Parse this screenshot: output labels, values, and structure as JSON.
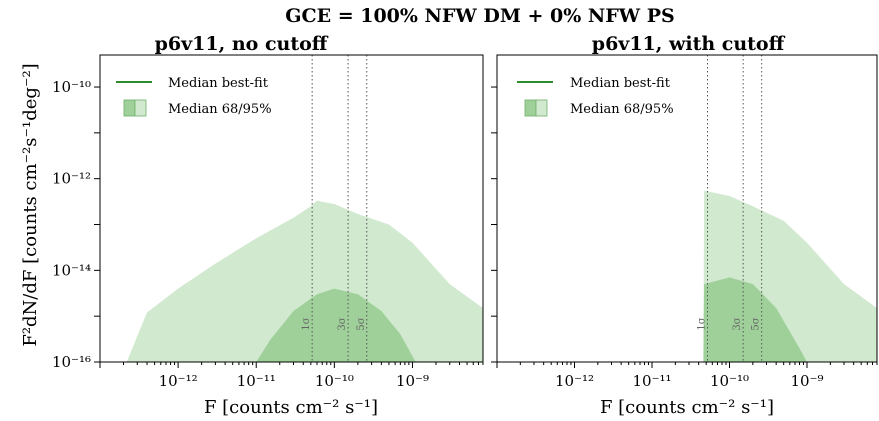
{
  "figure": {
    "suptitle": "GCE = 100% NFW DM + 0% NFW PS",
    "ylabel": "F²dN/dF [counts cm⁻²s⁻¹deg⁻²]"
  },
  "colors": {
    "band68": "#9fd09a",
    "band95": "#d1e9cf",
    "median_line": "#2e8b2e",
    "sigma_line": "#555555"
  },
  "legend": {
    "median_label": "Median best-fit",
    "band_label": "Median 68/95%"
  },
  "chart_data": [
    {
      "type": "area",
      "title": "p6v11, no cutoff",
      "xlabel": "F [counts cm⁻² s⁻¹]",
      "ylabel": "F²dN/dF [counts cm⁻²s⁻¹deg⁻²]",
      "xscale": "log",
      "yscale": "log",
      "xlim": [
        1e-13,
        8e-09
      ],
      "ylim": [
        1e-16,
        5e-10
      ],
      "xticks": [
        {
          "v": 1e-12,
          "label": "10⁻¹²"
        },
        {
          "v": 1e-11,
          "label": "10⁻¹¹"
        },
        {
          "v": 1e-10,
          "label": "10⁻¹⁰"
        },
        {
          "v": 1e-09,
          "label": "10⁻⁹"
        }
      ],
      "yticks": [
        {
          "v": 1e-16,
          "label": "10⁻¹⁶"
        },
        {
          "v": 1e-14,
          "label": "10⁻¹⁴"
        },
        {
          "v": 1e-12,
          "label": "10⁻¹²"
        },
        {
          "v": 1e-10,
          "label": "10⁻¹⁰"
        }
      ],
      "grid": false,
      "legend_position": "top-left",
      "sigma_lines": [
        {
          "label": "1σ",
          "x": 5.2e-11
        },
        {
          "label": "3σ",
          "x": 1.5e-10
        },
        {
          "label": "5σ",
          "x": 2.6e-10
        }
      ],
      "band_95": [
        {
          "x": 2.2e-13,
          "low": 1e-16,
          "high": 1e-16
        },
        {
          "x": 4e-13,
          "low": 1e-16,
          "high": 1.2e-15
        },
        {
          "x": 1e-12,
          "low": 1e-16,
          "high": 4e-15
        },
        {
          "x": 3e-12,
          "low": 1e-16,
          "high": 1.4e-14
        },
        {
          "x": 1e-11,
          "low": 1e-16,
          "high": 5e-14
        },
        {
          "x": 3e-11,
          "low": 1e-16,
          "high": 1.4e-13
        },
        {
          "x": 5e-11,
          "low": 1e-16,
          "high": 2.5e-13
        },
        {
          "x": 6e-11,
          "low": 1e-16,
          "high": 3.3e-13
        },
        {
          "x": 1e-10,
          "low": 1e-16,
          "high": 2.8e-13
        },
        {
          "x": 2e-10,
          "low": 1e-16,
          "high": 1.7e-13
        },
        {
          "x": 5e-10,
          "low": 1e-16,
          "high": 1e-13
        },
        {
          "x": 1e-09,
          "low": 1e-16,
          "high": 4e-14
        },
        {
          "x": 3e-09,
          "low": 1e-16,
          "high": 5e-15
        },
        {
          "x": 8e-09,
          "low": 1e-16,
          "high": 1.5e-15
        }
      ],
      "band_68": [
        {
          "x": 1e-11,
          "low": 1e-16,
          "high": 1e-16
        },
        {
          "x": 1.5e-11,
          "low": 1e-16,
          "high": 3e-16
        },
        {
          "x": 3e-11,
          "low": 1e-16,
          "high": 1.3e-15
        },
        {
          "x": 6e-11,
          "low": 1e-16,
          "high": 3e-15
        },
        {
          "x": 1e-10,
          "low": 1e-16,
          "high": 4e-15
        },
        {
          "x": 2e-10,
          "low": 1e-16,
          "high": 3e-15
        },
        {
          "x": 4e-10,
          "low": 1e-16,
          "high": 1.3e-15
        },
        {
          "x": 7e-10,
          "low": 1e-16,
          "high": 4e-16
        },
        {
          "x": 1.1e-09,
          "low": 1e-16,
          "high": 1e-16
        }
      ]
    },
    {
      "type": "area",
      "title": "p6v11, with cutoff",
      "xlabel": "F [counts cm⁻² s⁻¹]",
      "ylabel": "",
      "xscale": "log",
      "yscale": "log",
      "xlim": [
        1e-13,
        8e-09
      ],
      "ylim": [
        1e-16,
        5e-10
      ],
      "xticks": [
        {
          "v": 1e-12,
          "label": "10⁻¹²"
        },
        {
          "v": 1e-11,
          "label": "10⁻¹¹"
        },
        {
          "v": 1e-10,
          "label": "10⁻¹⁰"
        },
        {
          "v": 1e-09,
          "label": "10⁻⁹"
        }
      ],
      "yticks": [],
      "grid": false,
      "legend_position": "top-left",
      "sigma_lines": [
        {
          "label": "1σ",
          "x": 5.2e-11
        },
        {
          "label": "3σ",
          "x": 1.5e-10
        },
        {
          "label": "5σ",
          "x": 2.6e-10
        }
      ],
      "band_95": [
        {
          "x": 4.6e-11,
          "low": 1e-16,
          "high": 1e-16
        },
        {
          "x": 4.7e-11,
          "low": 1e-16,
          "high": 5.5e-13
        },
        {
          "x": 1e-10,
          "low": 1e-16,
          "high": 4.2e-13
        },
        {
          "x": 2e-10,
          "low": 1e-16,
          "high": 2.5e-13
        },
        {
          "x": 5e-10,
          "low": 1e-16,
          "high": 1.2e-13
        },
        {
          "x": 1e-09,
          "low": 1e-16,
          "high": 4e-14
        },
        {
          "x": 3e-09,
          "low": 1e-16,
          "high": 5e-15
        },
        {
          "x": 8e-09,
          "low": 1e-16,
          "high": 1.5e-15
        }
      ],
      "band_68": [
        {
          "x": 4.6e-11,
          "low": 1e-16,
          "high": 1e-16
        },
        {
          "x": 4.7e-11,
          "low": 1e-16,
          "high": 5e-15
        },
        {
          "x": 1e-10,
          "low": 1e-16,
          "high": 7e-15
        },
        {
          "x": 2e-10,
          "low": 1e-16,
          "high": 5e-15
        },
        {
          "x": 4e-10,
          "low": 1e-16,
          "high": 1.5e-15
        },
        {
          "x": 8e-10,
          "low": 1e-16,
          "high": 2e-16
        },
        {
          "x": 1e-09,
          "low": 1e-16,
          "high": 1e-16
        }
      ]
    }
  ]
}
